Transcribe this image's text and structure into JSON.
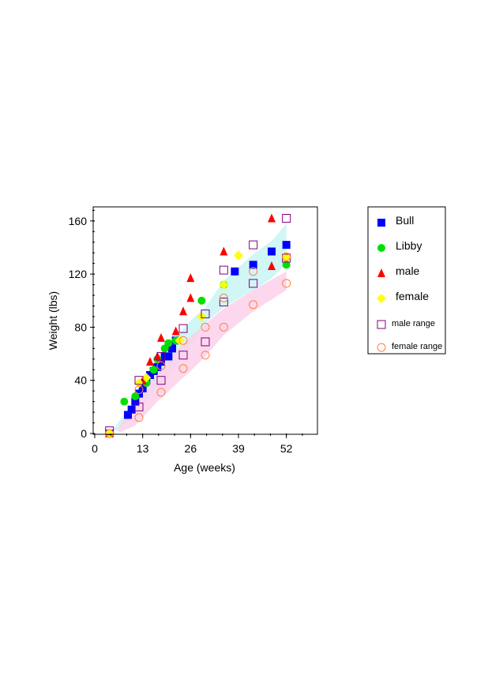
{
  "chart_data": {
    "type": "scatter",
    "title": "",
    "xlabel": "Age (weeks)",
    "ylabel": "Weight (lbs)",
    "xlim": [
      0,
      60
    ],
    "ylim": [
      0,
      170
    ],
    "xticks": [
      0,
      13,
      26,
      39,
      52
    ],
    "yticks": [
      0,
      40,
      80,
      120,
      160
    ],
    "colors": {
      "bull": "#0000ff",
      "libby": "#00e000",
      "male": "#ff0000",
      "female": "#ffff00",
      "male_range": "#800080",
      "female_range": "#ff8040",
      "male_band": "#c8f4f4",
      "female_band": "#fbd0ea"
    },
    "bands": [
      {
        "name": "male band",
        "color_key": "male_band",
        "upper": [
          [
            5,
            3
          ],
          [
            9,
            18
          ],
          [
            13,
            38
          ],
          [
            17,
            58
          ],
          [
            22,
            72
          ],
          [
            26,
            85
          ],
          [
            30,
            95
          ],
          [
            35,
            115
          ],
          [
            43,
            135
          ],
          [
            48,
            145
          ],
          [
            52,
            158
          ]
        ],
        "lower": [
          [
            52,
            128
          ],
          [
            48,
            117
          ],
          [
            43,
            108
          ],
          [
            35,
            95
          ],
          [
            30,
            83
          ],
          [
            26,
            67
          ],
          [
            22,
            50
          ],
          [
            17,
            35
          ],
          [
            13,
            22
          ],
          [
            9,
            10
          ],
          [
            6,
            2
          ]
        ]
      },
      {
        "name": "female band",
        "color_key": "female_band",
        "upper": [
          [
            6,
            2
          ],
          [
            11,
            24
          ],
          [
            17,
            45
          ],
          [
            22,
            62
          ],
          [
            26,
            73
          ],
          [
            35,
            94
          ],
          [
            43,
            108
          ],
          [
            52,
            122
          ]
        ],
        "lower": [
          [
            52,
            108
          ],
          [
            43,
            92
          ],
          [
            35,
            74
          ],
          [
            30,
            58
          ],
          [
            26,
            47
          ],
          [
            22,
            37
          ],
          [
            17,
            24
          ],
          [
            11,
            6
          ],
          [
            7,
            1
          ]
        ]
      }
    ],
    "series": [
      {
        "name": "Bull",
        "marker": "square-filled",
        "color_key": "bull",
        "points": [
          [
            4,
            0
          ],
          [
            9,
            14
          ],
          [
            10,
            18
          ],
          [
            11,
            24
          ],
          [
            12,
            30
          ],
          [
            13,
            34
          ],
          [
            14,
            40
          ],
          [
            15,
            44
          ],
          [
            16,
            47
          ],
          [
            17,
            50
          ],
          [
            18,
            54
          ],
          [
            19,
            58
          ],
          [
            20,
            58
          ],
          [
            21,
            64
          ],
          [
            22,
            70
          ],
          [
            38,
            122
          ],
          [
            43,
            127
          ],
          [
            48,
            137
          ],
          [
            52,
            142
          ]
        ]
      },
      {
        "name": "Libby",
        "marker": "circle-filled",
        "color_key": "libby",
        "points": [
          [
            4,
            0
          ],
          [
            8,
            24
          ],
          [
            11,
            28
          ],
          [
            14,
            38
          ],
          [
            16,
            48
          ],
          [
            17,
            56
          ],
          [
            19,
            64
          ],
          [
            20,
            68
          ],
          [
            22,
            70
          ],
          [
            29,
            100
          ],
          [
            35,
            112
          ],
          [
            52,
            127
          ]
        ]
      },
      {
        "name": "male",
        "marker": "triangle-filled",
        "color_key": "male",
        "points": [
          [
            4,
            0
          ],
          [
            13,
            40
          ],
          [
            15,
            54
          ],
          [
            17,
            58
          ],
          [
            18,
            72
          ],
          [
            22,
            77
          ],
          [
            24,
            92
          ],
          [
            26,
            102
          ],
          [
            26,
            117
          ],
          [
            35,
            137
          ],
          [
            48,
            162
          ],
          [
            48,
            126
          ]
        ]
      },
      {
        "name": "female",
        "marker": "diamond-filled",
        "color_key": "female",
        "points": [
          [
            4,
            0
          ],
          [
            12,
            38
          ],
          [
            14,
            42
          ],
          [
            23,
            70
          ],
          [
            29,
            88
          ],
          [
            35,
            112
          ],
          [
            39,
            134
          ],
          [
            52,
            133
          ]
        ]
      },
      {
        "name": "male range",
        "marker": "square-open",
        "color_key": "male_range",
        "points": [
          [
            4,
            2
          ],
          [
            12,
            40
          ],
          [
            12,
            20
          ],
          [
            18,
            58
          ],
          [
            18,
            40
          ],
          [
            24,
            79
          ],
          [
            24,
            59
          ],
          [
            30,
            90
          ],
          [
            30,
            69
          ],
          [
            35,
            123
          ],
          [
            35,
            99
          ],
          [
            43,
            142
          ],
          [
            43,
            113
          ],
          [
            52,
            162
          ],
          [
            52,
            132
          ]
        ]
      },
      {
        "name": "female range",
        "marker": "circle-open",
        "color_key": "female_range",
        "points": [
          [
            4,
            0
          ],
          [
            12,
            12
          ],
          [
            12,
            33
          ],
          [
            18,
            31
          ],
          [
            18,
            51
          ],
          [
            24,
            49
          ],
          [
            24,
            70
          ],
          [
            30,
            59
          ],
          [
            30,
            80
          ],
          [
            35,
            80
          ],
          [
            35,
            102
          ],
          [
            43,
            97
          ],
          [
            43,
            122
          ],
          [
            52,
            113
          ],
          [
            52,
            133
          ]
        ]
      }
    ],
    "legend": {
      "position": "right",
      "entries": [
        {
          "label": "Bull",
          "marker": "square-filled",
          "color_key": "bull",
          "size": "large"
        },
        {
          "label": "Libby",
          "marker": "circle-filled",
          "color_key": "libby",
          "size": "large"
        },
        {
          "label": "male",
          "marker": "triangle-filled",
          "color_key": "male",
          "size": "large"
        },
        {
          "label": "female",
          "marker": "diamond-filled",
          "color_key": "female",
          "size": "large"
        },
        {
          "label": "male range",
          "marker": "square-open",
          "color_key": "male_range",
          "size": "small"
        },
        {
          "label": "female range",
          "marker": "circle-open",
          "color_key": "female_range",
          "size": "small"
        }
      ]
    }
  }
}
